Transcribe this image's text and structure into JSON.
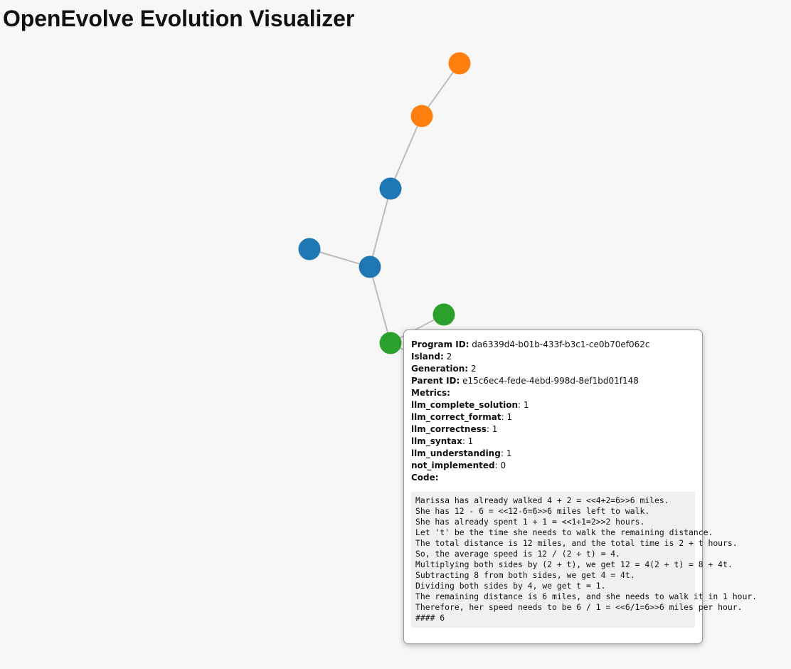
{
  "page": {
    "title": "OpenEvolve Evolution Visualizer"
  },
  "colors": {
    "island_0": "#ff7f0e",
    "island_1": "#1f77b4",
    "island_2": "#2ca02c",
    "island_3": "#9467bd",
    "edge": "#bbbbbb",
    "background": "#f7f7f7"
  },
  "graph": {
    "nodes": [
      {
        "id": "n1",
        "island": 0
      },
      {
        "id": "n2",
        "island": 0
      },
      {
        "id": "n3",
        "island": 1
      },
      {
        "id": "n4",
        "island": 1
      },
      {
        "id": "n5",
        "island": 1
      },
      {
        "id": "n6",
        "island": 2
      },
      {
        "id": "n7",
        "island": 2
      },
      {
        "id": "n8",
        "island": 2
      },
      {
        "id": "n9",
        "island": 1
      },
      {
        "id": "n10",
        "island": 1
      }
    ],
    "edges": [
      [
        "n1",
        "n2"
      ],
      [
        "n2",
        "n3"
      ],
      [
        "n3",
        "n5"
      ],
      [
        "n4",
        "n5"
      ],
      [
        "n5",
        "n7"
      ],
      [
        "n6",
        "n7"
      ],
      [
        "n7",
        "n8"
      ],
      [
        "n9",
        "n10"
      ]
    ]
  },
  "tooltip": {
    "program_id_label": "Program ID:",
    "program_id": "da6339d4-b01b-433f-b3c1-ce0b70ef062c",
    "island_label": "Island:",
    "island": "2",
    "generation_label": "Generation:",
    "generation": "2",
    "parent_id_label": "Parent ID:",
    "parent_id": "e15c6ec4-fede-4ebd-998d-8ef1bd01f148",
    "metrics_label": "Metrics:",
    "metrics": [
      {
        "name": "llm_complete_solution",
        "value": "1"
      },
      {
        "name": "llm_correct_format",
        "value": "1"
      },
      {
        "name": "llm_correctness",
        "value": "1"
      },
      {
        "name": "llm_syntax",
        "value": "1"
      },
      {
        "name": "llm_understanding",
        "value": "1"
      },
      {
        "name": "not_implemented",
        "value": "0"
      }
    ],
    "code_label": "Code:",
    "code": "Marissa has already walked 4 + 2 = <<4+2=6>>6 miles.\nShe has 12 - 6 = <<12-6=6>>6 miles left to walk.\nShe has already spent 1 + 1 = <<1+1=2>>2 hours.\nLet 't' be the time she needs to walk the remaining distance.\nThe total distance is 12 miles, and the total time is 2 + t hours.\nSo, the average speed is 12 / (2 + t) = 4.\nMultiplying both sides by (2 + t), we get 12 = 4(2 + t) = 8 + 4t.\nSubtracting 8 from both sides, we get 4 = 4t.\nDividing both sides by 4, we get t = 1.\nThe remaining distance is 6 miles, and she needs to walk it in 1 hour.\nTherefore, her speed needs to be 6 / 1 = <<6/1=6>>6 miles per hour.\n#### 6"
  }
}
